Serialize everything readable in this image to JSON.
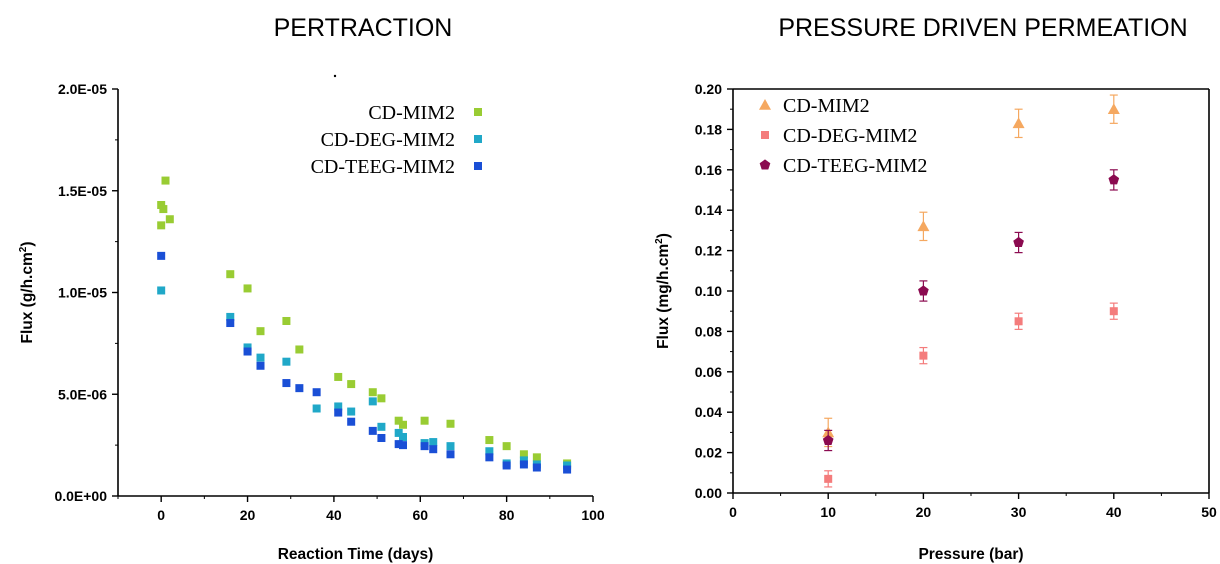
{
  "chart_data": [
    {
      "type": "scatter",
      "title": "PERTRACTION",
      "xlabel": "Reaction Time (days)",
      "ylabel": "Flux (g/h.cm",
      "ylabel_sup": "2",
      "ylabel_close": ")",
      "xlim": [
        -10,
        100
      ],
      "ylim": [
        0,
        2e-05
      ],
      "xticks": [
        0,
        20,
        40,
        60,
        80,
        100
      ],
      "xtick_labels": [
        "0",
        "20",
        "40",
        "60",
        "80",
        "100"
      ],
      "yticks": [
        0,
        5e-06,
        1e-05,
        1.5e-05,
        2e-05
      ],
      "ytick_labels": [
        "0.0E+00",
        "5.0E-06",
        "1.0E-05",
        "1.5E-05",
        "2.0E-05"
      ],
      "grid": false,
      "legend_position": "top-right",
      "series": [
        {
          "name": "CD-MIM2",
          "color": "#99cc33",
          "marker": "square",
          "points": [
            [
              0,
              1.43e-05
            ],
            [
              0,
              1.33e-05
            ],
            [
              0.5,
              1.41e-05
            ],
            [
              1,
              1.55e-05
            ],
            [
              2,
              1.36e-05
            ],
            [
              16,
              1.09e-05
            ],
            [
              20,
              1.02e-05
            ],
            [
              23,
              8.1e-06
            ],
            [
              29,
              8.6e-06
            ],
            [
              32,
              7.2e-06
            ],
            [
              41,
              5.85e-06
            ],
            [
              44,
              5.5e-06
            ],
            [
              49,
              5.1e-06
            ],
            [
              51,
              4.8e-06
            ],
            [
              55,
              3.7e-06
            ],
            [
              56,
              3.5e-06
            ],
            [
              61,
              3.7e-06
            ],
            [
              67,
              3.55e-06
            ],
            [
              76,
              2.75e-06
            ],
            [
              80,
              2.45e-06
            ],
            [
              84,
              2.05e-06
            ],
            [
              87,
              1.9e-06
            ],
            [
              94,
              1.6e-06
            ]
          ]
        },
        {
          "name": "CD-DEG-MIM2",
          "color": "#20a8c8",
          "marker": "square",
          "points": [
            [
              0,
              1.01e-05
            ],
            [
              16,
              8.8e-06
            ],
            [
              20,
              7.3e-06
            ],
            [
              23,
              6.8e-06
            ],
            [
              29,
              6.6e-06
            ],
            [
              36,
              4.3e-06
            ],
            [
              41,
              4.4e-06
            ],
            [
              44,
              4.15e-06
            ],
            [
              49,
              4.65e-06
            ],
            [
              51,
              3.4e-06
            ],
            [
              55,
              3.1e-06
            ],
            [
              56,
              2.9e-06
            ],
            [
              61,
              2.6e-06
            ],
            [
              63,
              2.65e-06
            ],
            [
              67,
              2.45e-06
            ],
            [
              76,
              2.2e-06
            ],
            [
              80,
              1.6e-06
            ],
            [
              84,
              1.75e-06
            ],
            [
              87,
              1.55e-06
            ],
            [
              94,
              1.5e-06
            ]
          ]
        },
        {
          "name": "CD-TEEG-MIM2",
          "color": "#1a4fd6",
          "marker": "square",
          "points": [
            [
              0,
              1.18e-05
            ],
            [
              16,
              8.5e-06
            ],
            [
              20,
              7.1e-06
            ],
            [
              23,
              6.4e-06
            ],
            [
              29,
              5.55e-06
            ],
            [
              32,
              5.3e-06
            ],
            [
              36,
              5.1e-06
            ],
            [
              41,
              4.1e-06
            ],
            [
              44,
              3.65e-06
            ],
            [
              49,
              3.2e-06
            ],
            [
              51,
              2.85e-06
            ],
            [
              55,
              2.55e-06
            ],
            [
              56,
              2.5e-06
            ],
            [
              61,
              2.45e-06
            ],
            [
              63,
              2.3e-06
            ],
            [
              67,
              2.05e-06
            ],
            [
              76,
              1.9e-06
            ],
            [
              80,
              1.5e-06
            ],
            [
              84,
              1.55e-06
            ],
            [
              87,
              1.4e-06
            ],
            [
              94,
              1.3e-06
            ]
          ]
        }
      ]
    },
    {
      "type": "scatter",
      "title": "PRESSURE DRIVEN PERMEATION",
      "xlabel": "Pressure (bar)",
      "ylabel": "Flux (mg/h.cm",
      "ylabel_sup": "2",
      "ylabel_close": ")",
      "xlim": [
        0,
        50
      ],
      "ylim": [
        0,
        0.2
      ],
      "xticks": [
        0,
        10,
        20,
        30,
        40,
        50
      ],
      "xtick_labels": [
        "0",
        "10",
        "20",
        "30",
        "40",
        "50"
      ],
      "yticks": [
        0,
        0.02,
        0.04,
        0.06,
        0.08,
        0.1,
        0.12,
        0.14,
        0.16,
        0.18,
        0.2
      ],
      "ytick_labels": [
        "0.00",
        "0.02",
        "0.04",
        "0.06",
        "0.08",
        "0.10",
        "0.12",
        "0.14",
        "0.16",
        "0.18",
        "0.20"
      ],
      "grid": false,
      "legend_position": "top-left",
      "series": [
        {
          "name": "CD-MIM2",
          "color": "#f5a860",
          "marker": "triangle",
          "points": [
            [
              10,
              0.03
            ],
            [
              20,
              0.132
            ],
            [
              30,
              0.183
            ],
            [
              40,
              0.19
            ]
          ],
          "errors": [
            0.007,
            0.007,
            0.007,
            0.007
          ]
        },
        {
          "name": "CD-DEG-MIM2",
          "color": "#f47c7c",
          "marker": "square",
          "points": [
            [
              10,
              0.007
            ],
            [
              20,
              0.068
            ],
            [
              30,
              0.085
            ],
            [
              40,
              0.09
            ]
          ],
          "errors": [
            0.004,
            0.004,
            0.004,
            0.004
          ]
        },
        {
          "name": "CD-TEEG-MIM2",
          "color": "#8b0a50",
          "marker": "pentagon",
          "points": [
            [
              10,
              0.026
            ],
            [
              20,
              0.1
            ],
            [
              30,
              0.124
            ],
            [
              40,
              0.155
            ]
          ],
          "errors": [
            0.005,
            0.005,
            0.005,
            0.005
          ]
        }
      ]
    }
  ]
}
